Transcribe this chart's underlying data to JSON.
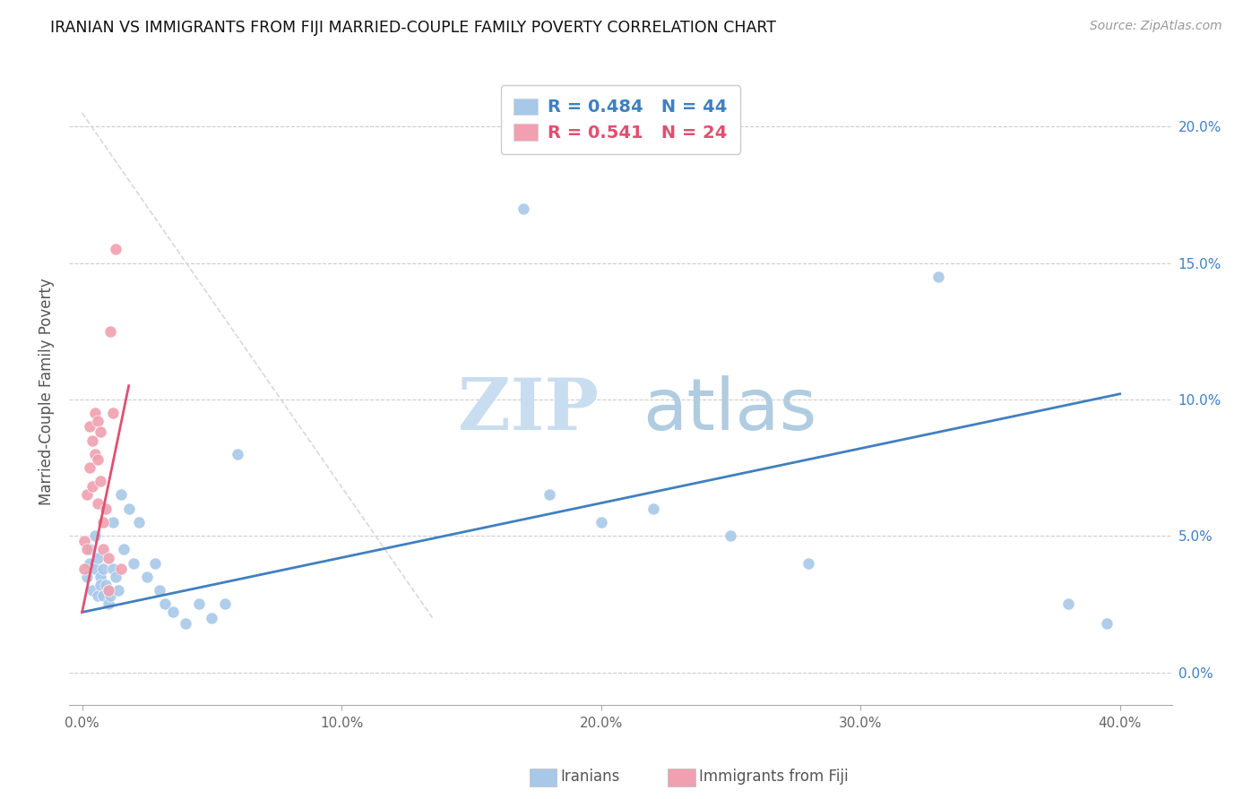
{
  "title": "IRANIAN VS IMMIGRANTS FROM FIJI MARRIED-COUPLE FAMILY POVERTY CORRELATION CHART",
  "source": "Source: ZipAtlas.com",
  "ylabel": "Married-Couple Family Poverty",
  "watermark_zip": "ZIP",
  "watermark_atlas": "atlas",
  "legend": [
    {
      "label": "Iranians",
      "color": "#a8c8e8",
      "R": 0.484,
      "N": 44
    },
    {
      "label": "Immigrants from Fiji",
      "color": "#f0a0b0",
      "R": 0.541,
      "N": 24
    }
  ],
  "iranians_x": [
    0.002,
    0.003,
    0.003,
    0.004,
    0.005,
    0.005,
    0.006,
    0.006,
    0.007,
    0.007,
    0.008,
    0.008,
    0.009,
    0.01,
    0.01,
    0.011,
    0.012,
    0.012,
    0.013,
    0.014,
    0.015,
    0.016,
    0.018,
    0.02,
    0.022,
    0.025,
    0.028,
    0.03,
    0.032,
    0.035,
    0.04,
    0.045,
    0.05,
    0.055,
    0.06,
    0.17,
    0.18,
    0.2,
    0.22,
    0.25,
    0.28,
    0.33,
    0.38,
    0.395
  ],
  "iranians_y": [
    0.035,
    0.045,
    0.04,
    0.03,
    0.05,
    0.038,
    0.042,
    0.028,
    0.035,
    0.032,
    0.038,
    0.028,
    0.032,
    0.03,
    0.025,
    0.028,
    0.055,
    0.038,
    0.035,
    0.03,
    0.065,
    0.045,
    0.06,
    0.04,
    0.055,
    0.035,
    0.04,
    0.03,
    0.025,
    0.022,
    0.018,
    0.025,
    0.02,
    0.025,
    0.08,
    0.17,
    0.065,
    0.055,
    0.06,
    0.05,
    0.04,
    0.145,
    0.025,
    0.018
  ],
  "fiji_x": [
    0.001,
    0.001,
    0.002,
    0.002,
    0.003,
    0.003,
    0.004,
    0.004,
    0.005,
    0.005,
    0.006,
    0.006,
    0.006,
    0.007,
    0.007,
    0.008,
    0.008,
    0.009,
    0.01,
    0.01,
    0.011,
    0.012,
    0.013,
    0.015
  ],
  "fiji_y": [
    0.048,
    0.038,
    0.065,
    0.045,
    0.09,
    0.075,
    0.085,
    0.068,
    0.095,
    0.08,
    0.092,
    0.078,
    0.062,
    0.088,
    0.07,
    0.055,
    0.045,
    0.06,
    0.042,
    0.03,
    0.125,
    0.095,
    0.155,
    0.038
  ],
  "blue_line_x": [
    0.0,
    0.4
  ],
  "blue_line_y": [
    0.022,
    0.102
  ],
  "pink_line_x": [
    0.0,
    0.018
  ],
  "pink_line_y": [
    0.022,
    0.105
  ],
  "dashed_line_x": [
    0.0,
    0.135
  ],
  "dashed_line_y": [
    0.205,
    0.02
  ],
  "scatter_color_iranian": "#a8c8e8",
  "scatter_color_fiji": "#f0a0b0",
  "line_color_blue": "#4080c0",
  "line_color_pink": "#e05070",
  "dashed_color": "#d8d8d8",
  "xlim": [
    -0.005,
    0.42
  ],
  "ylim": [
    -0.012,
    0.218
  ],
  "xtick_vals": [
    0.0,
    0.1,
    0.2,
    0.3,
    0.4
  ],
  "xtick_labels": [
    "0.0%",
    "10.0%",
    "20.0%",
    "30.0%",
    "40.0%"
  ],
  "ytick_vals": [
    0.0,
    0.05,
    0.1,
    0.15,
    0.2
  ],
  "ytick_labels": [
    "0.0%",
    "5.0%",
    "10.0%",
    "15.0%",
    "20.0%"
  ]
}
